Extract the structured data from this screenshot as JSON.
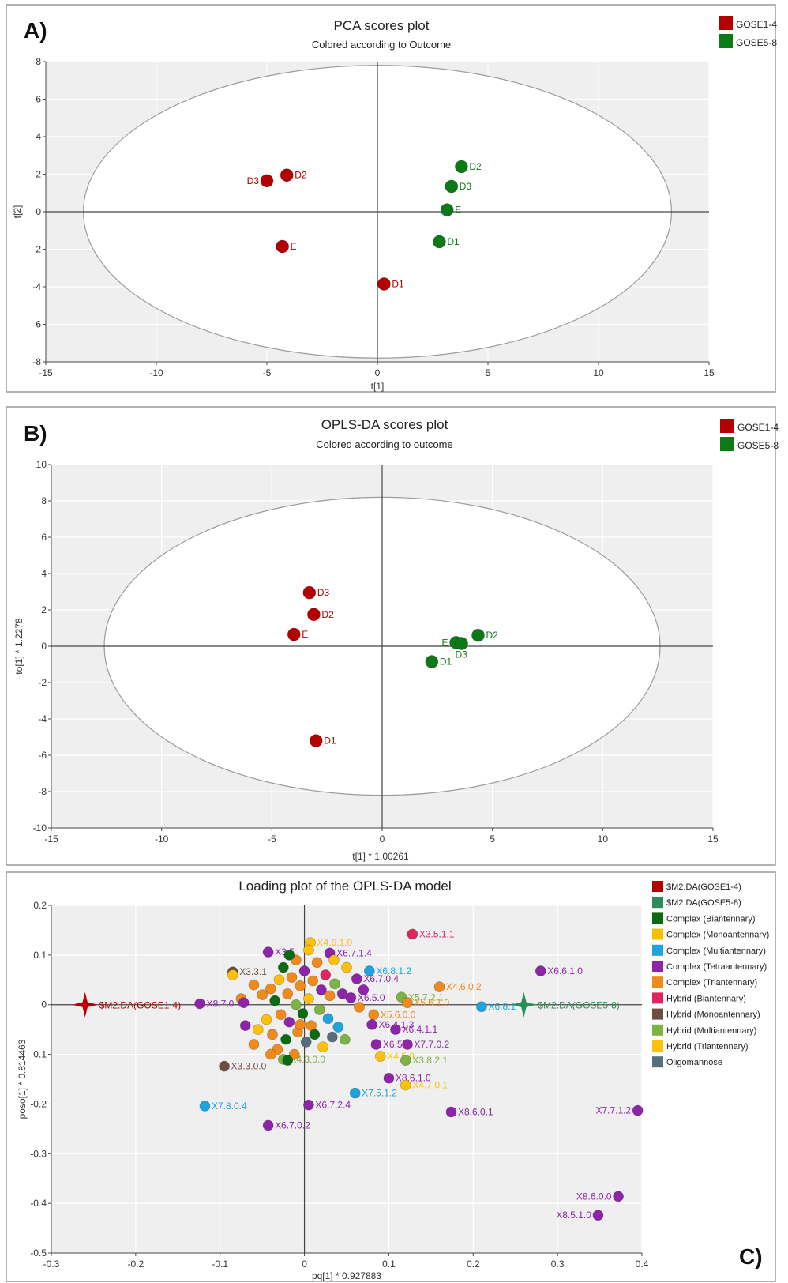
{
  "colors": {
    "red": "#b30000",
    "green": "#0c7a16",
    "plot_bg": "#efefef",
    "frame": "#9a9a9a"
  },
  "chart_data": [
    {
      "panel": "A)",
      "type": "scatter",
      "title": "PCA scores plot",
      "subtitle": "Colored according to Outcome",
      "xlabel": "t[1]",
      "ylabel": "t[2]",
      "xlim": [
        -15,
        15
      ],
      "ylim": [
        -8,
        8
      ],
      "xticks": [
        "-15",
        "-10",
        "-5",
        "0",
        "5",
        "10",
        "15"
      ],
      "yticks": [
        "-8",
        "-6",
        "-4",
        "-2",
        "0",
        "2",
        "4",
        "6",
        "8"
      ],
      "ellipse": {
        "rx": 13.3,
        "ry": 7.8
      },
      "legend": [
        {
          "name": "GOSE1-4",
          "color": "#b30000"
        },
        {
          "name": "GOSE5-8",
          "color": "#0c7a16"
        }
      ],
      "points": [
        {
          "label": "D3",
          "x": -5.0,
          "y": 1.65,
          "group": 0,
          "pos": "left"
        },
        {
          "label": "D2",
          "x": -4.1,
          "y": 1.95,
          "group": 0,
          "pos": "right"
        },
        {
          "label": "E",
          "x": -4.3,
          "y": -1.85,
          "group": 0,
          "pos": "right"
        },
        {
          "label": "D1",
          "x": 0.3,
          "y": -3.85,
          "group": 0,
          "pos": "right"
        },
        {
          "label": "D2",
          "x": 3.8,
          "y": 2.4,
          "group": 1,
          "pos": "right"
        },
        {
          "label": "D3",
          "x": 3.35,
          "y": 1.35,
          "group": 1,
          "pos": "right"
        },
        {
          "label": "E",
          "x": 3.15,
          "y": 0.1,
          "group": 1,
          "pos": "right"
        },
        {
          "label": "D1",
          "x": 2.8,
          "y": -1.6,
          "group": 1,
          "pos": "right"
        }
      ]
    },
    {
      "panel": "B)",
      "type": "scatter",
      "title": "OPLS-DA scores plot",
      "subtitle": "Colored according to outcome",
      "xlabel": "t[1] * 1.00261",
      "ylabel": "to[1] * 1.2278",
      "xlim": [
        -15,
        15
      ],
      "ylim": [
        -10,
        10
      ],
      "xticks": [
        "-15",
        "-10",
        "-5",
        "0",
        "5",
        "10",
        "15"
      ],
      "yticks": [
        "-10",
        "-8",
        "-6",
        "-4",
        "-2",
        "0",
        "2",
        "4",
        "6",
        "8",
        "10"
      ],
      "ellipse": {
        "rx": 12.6,
        "ry": 8.2
      },
      "legend": [
        {
          "name": "GOSE1-4",
          "color": "#b30000"
        },
        {
          "name": "GOSE5-8",
          "color": "#0c7a16"
        }
      ],
      "points": [
        {
          "label": "D3",
          "x": -3.3,
          "y": 2.95,
          "group": 0,
          "pos": "right"
        },
        {
          "label": "D2",
          "x": -3.1,
          "y": 1.75,
          "group": 0,
          "pos": "right"
        },
        {
          "label": "E",
          "x": -4.0,
          "y": 0.65,
          "group": 0,
          "pos": "right"
        },
        {
          "label": "D1",
          "x": -3.0,
          "y": -5.2,
          "group": 0,
          "pos": "right"
        },
        {
          "label": "D2",
          "x": 4.35,
          "y": 0.6,
          "group": 1,
          "pos": "right"
        },
        {
          "label": "E",
          "x": 3.35,
          "y": 0.2,
          "group": 1,
          "pos": "left"
        },
        {
          "label": "D3",
          "x": 3.6,
          "y": 0.15,
          "group": 1,
          "pos": "below-right"
        },
        {
          "label": "D1",
          "x": 2.25,
          "y": -0.85,
          "group": 1,
          "pos": "right"
        }
      ]
    },
    {
      "panel": "C)",
      "type": "scatter",
      "title": "Loading plot of the OPLS-DA model",
      "xlabel": "pq[1] * 0.927883",
      "ylabel": "poso[1] * 0.814463",
      "xlim": [
        -0.3,
        0.4
      ],
      "ylim": [
        -0.5,
        0.2
      ],
      "xticks": [
        "-0.3",
        "-0.2",
        "-0.1",
        "0",
        "0.1",
        "0.2",
        "0.3",
        "0.4"
      ],
      "yticks": [
        "-0.5",
        "-0.4",
        "-0.3",
        "-0.2",
        "-0.1",
        "0",
        "0.1",
        "0.2"
      ],
      "legend": [
        {
          "name": "$M2.DA(GOSE1-4)",
          "color": "#b30000"
        },
        {
          "name": "$M2.DA(GOSE5-8)",
          "color": "#2e8b57"
        },
        {
          "name": "Complex (Biantennary)",
          "color": "#0c6b12"
        },
        {
          "name": "Complex (Monoantennary)",
          "color": "#f2c200"
        },
        {
          "name": "Complex (Multiantennary)",
          "color": "#1ca3e0"
        },
        {
          "name": "Complex (Tetraantennary)",
          "color": "#8e24aa"
        },
        {
          "name": "Complex (Triantennary)",
          "color": "#f08a1c"
        },
        {
          "name": "Hybrid (Biantennary)",
          "color": "#e0245e"
        },
        {
          "name": "Hybrid (Monoantennary)",
          "color": "#6d4c41"
        },
        {
          "name": "Hybrid (Multiantennary)",
          "color": "#7cb342"
        },
        {
          "name": "Hybrid (Triantennary)",
          "color": "#ffc107"
        },
        {
          "name": "Oligomannose",
          "color": "#546e7a"
        }
      ],
      "stars": [
        {
          "label": "$M2.DA(GOSE1-4)",
          "x": -0.26,
          "y": 0.0,
          "group": 0
        },
        {
          "label": "$M2.DA(GOSE5-8)",
          "x": 0.26,
          "y": 0.0,
          "group": 1
        }
      ],
      "points": [
        {
          "label": "X3.5.1.1",
          "x": 0.128,
          "y": 0.142,
          "group": 7,
          "pos": "right"
        },
        {
          "label": "X4.6.1.0",
          "x": 0.007,
          "y": 0.125,
          "group": 10,
          "pos": "right"
        },
        {
          "label": "X6.6.1.0",
          "x": 0.28,
          "y": 0.068,
          "group": 5,
          "pos": "right"
        },
        {
          "label": "X4.6.0.2",
          "x": 0.16,
          "y": 0.036,
          "group": 6,
          "pos": "right"
        },
        {
          "label": "X6.8.1",
          "x": 0.21,
          "y": -0.004,
          "group": 4,
          "pos": "right"
        },
        {
          "label": "X6.8.1.2",
          "x": 0.077,
          "y": 0.068,
          "group": 4,
          "pos": "right"
        },
        {
          "label": "X6.7.1.4",
          "x": 0.03,
          "y": 0.104,
          "group": 5,
          "pos": "right"
        },
        {
          "label": "X6.7.0.4",
          "x": 0.062,
          "y": 0.052,
          "group": 5,
          "pos": "right"
        },
        {
          "label": "X5.7.2.1",
          "x": 0.115,
          "y": 0.015,
          "group": 9,
          "pos": "right"
        },
        {
          "label": "X5.6.1.0",
          "x": 0.122,
          "y": 0.004,
          "group": 6,
          "pos": "right"
        },
        {
          "label": "X5.6.0.0",
          "x": 0.082,
          "y": -0.02,
          "group": 6,
          "pos": "right"
        },
        {
          "label": "X6.4.1.1",
          "x": 0.108,
          "y": -0.05,
          "group": 5,
          "pos": "right"
        },
        {
          "label": "X6.4.1.3",
          "x": 0.08,
          "y": -0.04,
          "group": 5,
          "pos": "right"
        },
        {
          "label": "X7.7.0.2",
          "x": 0.122,
          "y": -0.08,
          "group": 5,
          "pos": "right"
        },
        {
          "label": "X6.5",
          "x": 0.085,
          "y": -0.08,
          "group": 5,
          "pos": "right"
        },
        {
          "label": "X4.5.0",
          "x": 0.09,
          "y": -0.104,
          "group": 10,
          "pos": "right"
        },
        {
          "label": "X3.8.2.1",
          "x": 0.12,
          "y": -0.112,
          "group": 9,
          "pos": "right"
        },
        {
          "label": "X8.6.1.0",
          "x": 0.1,
          "y": -0.148,
          "group": 5,
          "pos": "right"
        },
        {
          "label": "X4.7.0.1",
          "x": 0.12,
          "y": -0.162,
          "group": 10,
          "pos": "right"
        },
        {
          "label": "X7.5.1.2",
          "x": 0.06,
          "y": -0.178,
          "group": 4,
          "pos": "right"
        },
        {
          "label": "X8.6.0.1",
          "x": 0.174,
          "y": -0.216,
          "group": 5,
          "pos": "right"
        },
        {
          "label": "X7.7.1.2",
          "x": 0.395,
          "y": -0.213,
          "group": 5,
          "pos": "left"
        },
        {
          "label": "X8.6.0.0",
          "x": 0.372,
          "y": -0.386,
          "group": 5,
          "pos": "left"
        },
        {
          "label": "X8.5.1.0",
          "x": 0.348,
          "y": -0.424,
          "group": 5,
          "pos": "left"
        },
        {
          "label": "X6.7.2.4",
          "x": 0.005,
          "y": -0.202,
          "group": 5,
          "pos": "right"
        },
        {
          "label": "X7.8.0.4",
          "x": -0.118,
          "y": -0.204,
          "group": 4,
          "pos": "right"
        },
        {
          "label": "X6.7.0.2",
          "x": -0.043,
          "y": -0.243,
          "group": 5,
          "pos": "right"
        },
        {
          "label": "X3.3.0.0",
          "x": -0.095,
          "y": -0.124,
          "group": 8,
          "pos": "right"
        },
        {
          "label": "X4.3.0.0",
          "x": -0.025,
          "y": -0.11,
          "group": 9,
          "pos": "right"
        },
        {
          "label": "X8.7.0",
          "x": -0.124,
          "y": 0.002,
          "group": 5,
          "pos": "right"
        },
        {
          "label": "X3.3.1",
          "x": -0.085,
          "y": 0.066,
          "group": 8,
          "pos": "right"
        },
        {
          "label": "X3.5",
          "x": -0.043,
          "y": 0.106,
          "group": 5,
          "pos": "right"
        },
        {
          "label": "X6.5.0",
          "x": 0.055,
          "y": 0.014,
          "group": 5,
          "pos": "right"
        },
        {
          "label": "",
          "x": -0.085,
          "y": 0.06,
          "group": 10
        },
        {
          "label": "",
          "x": -0.075,
          "y": 0.012,
          "group": 6
        },
        {
          "label": "",
          "x": -0.07,
          "y": -0.042,
          "group": 5
        },
        {
          "label": "",
          "x": -0.072,
          "y": 0.004,
          "group": 5
        },
        {
          "label": "",
          "x": -0.06,
          "y": 0.04,
          "group": 6
        },
        {
          "label": "",
          "x": -0.055,
          "y": -0.05,
          "group": 10
        },
        {
          "label": "",
          "x": -0.05,
          "y": 0.02,
          "group": 6
        },
        {
          "label": "",
          "x": -0.045,
          "y": -0.03,
          "group": 10
        },
        {
          "label": "",
          "x": -0.04,
          "y": 0.032,
          "group": 6
        },
        {
          "label": "",
          "x": -0.038,
          "y": -0.06,
          "group": 6
        },
        {
          "label": "",
          "x": -0.035,
          "y": 0.008,
          "group": 2
        },
        {
          "label": "",
          "x": -0.032,
          "y": -0.09,
          "group": 6
        },
        {
          "label": "",
          "x": -0.03,
          "y": 0.05,
          "group": 10
        },
        {
          "label": "",
          "x": -0.028,
          "y": -0.02,
          "group": 6
        },
        {
          "label": "",
          "x": -0.025,
          "y": 0.075,
          "group": 2
        },
        {
          "label": "",
          "x": -0.022,
          "y": -0.07,
          "group": 2
        },
        {
          "label": "",
          "x": -0.02,
          "y": 0.022,
          "group": 6
        },
        {
          "label": "",
          "x": -0.018,
          "y": -0.035,
          "group": 5
        },
        {
          "label": "",
          "x": -0.015,
          "y": 0.055,
          "group": 6
        },
        {
          "label": "",
          "x": -0.012,
          "y": -0.1,
          "group": 6
        },
        {
          "label": "",
          "x": -0.01,
          "y": 0.0,
          "group": 9
        },
        {
          "label": "",
          "x": -0.008,
          "y": -0.055,
          "group": 6
        },
        {
          "label": "",
          "x": -0.005,
          "y": 0.038,
          "group": 6
        },
        {
          "label": "",
          "x": -0.002,
          "y": -0.018,
          "group": 2
        },
        {
          "label": "",
          "x": 0.0,
          "y": 0.068,
          "group": 5
        },
        {
          "label": "",
          "x": 0.002,
          "y": -0.075,
          "group": 11
        },
        {
          "label": "",
          "x": 0.005,
          "y": 0.012,
          "group": 10
        },
        {
          "label": "",
          "x": 0.008,
          "y": -0.042,
          "group": 6
        },
        {
          "label": "",
          "x": 0.01,
          "y": 0.048,
          "group": 6
        },
        {
          "label": "",
          "x": 0.012,
          "y": -0.06,
          "group": 2
        },
        {
          "label": "",
          "x": 0.015,
          "y": 0.085,
          "group": 6
        },
        {
          "label": "",
          "x": 0.018,
          "y": -0.01,
          "group": 9
        },
        {
          "label": "",
          "x": 0.02,
          "y": 0.03,
          "group": 5
        },
        {
          "label": "",
          "x": 0.022,
          "y": -0.085,
          "group": 10
        },
        {
          "label": "",
          "x": 0.025,
          "y": 0.06,
          "group": 7
        },
        {
          "label": "",
          "x": 0.028,
          "y": -0.028,
          "group": 4
        },
        {
          "label": "",
          "x": 0.03,
          "y": 0.018,
          "group": 6
        },
        {
          "label": "",
          "x": 0.033,
          "y": -0.065,
          "group": 11
        },
        {
          "label": "",
          "x": 0.036,
          "y": 0.042,
          "group": 9
        },
        {
          "label": "",
          "x": 0.04,
          "y": -0.045,
          "group": 4
        },
        {
          "label": "",
          "x": 0.045,
          "y": 0.022,
          "group": 5
        },
        {
          "label": "",
          "x": 0.048,
          "y": -0.07,
          "group": 9
        },
        {
          "label": "",
          "x": 0.05,
          "y": 0.075,
          "group": 10
        },
        {
          "label": "",
          "x": -0.06,
          "y": -0.08,
          "group": 6
        },
        {
          "label": "",
          "x": -0.04,
          "y": -0.1,
          "group": 6
        },
        {
          "label": "",
          "x": -0.01,
          "y": 0.09,
          "group": 6
        },
        {
          "label": "",
          "x": 0.005,
          "y": 0.11,
          "group": 10
        },
        {
          "label": "",
          "x": -0.005,
          "y": -0.04,
          "group": 6
        },
        {
          "label": "",
          "x": -0.018,
          "y": 0.1,
          "group": 2
        },
        {
          "label": "",
          "x": 0.065,
          "y": -0.005,
          "group": 6
        },
        {
          "label": "",
          "x": 0.07,
          "y": 0.03,
          "group": 5
        },
        {
          "label": "",
          "x": 0.035,
          "y": 0.09,
          "group": 10
        },
        {
          "label": "",
          "x": -0.02,
          "y": -0.112,
          "group": 2
        }
      ]
    }
  ]
}
